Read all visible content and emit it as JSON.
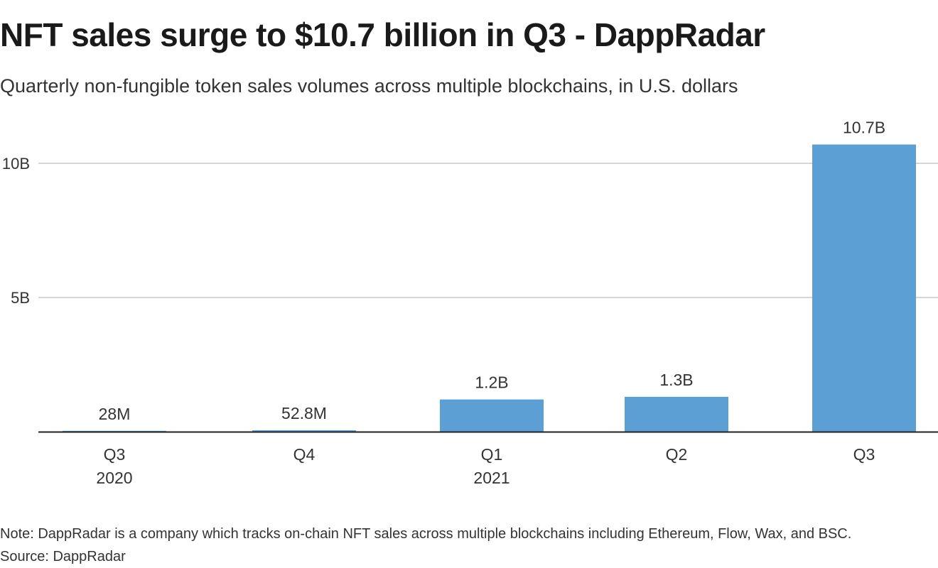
{
  "header": {
    "title": "NFT sales surge to $10.7 billion in Q3 - DappRadar",
    "subtitle": "Quarterly non-fungible token sales volumes across multiple blockchains, in U.S. dollars"
  },
  "footer": {
    "note": "Note: DappRadar is a company which tracks on-chain NFT sales across multiple blockchains including Ethereum, Flow, Wax, and BSC.",
    "source": "Source: DappRadar"
  },
  "chart_data": {
    "type": "bar",
    "categories": [
      "Q3",
      "Q4",
      "Q1",
      "Q2",
      "Q3"
    ],
    "year_labels": [
      "2020",
      "",
      "2021",
      "",
      ""
    ],
    "values": [
      0.028,
      0.0528,
      1.2,
      1.3,
      10.7
    ],
    "value_labels": [
      "28M",
      "52.8M",
      "1.2B",
      "1.3B",
      "10.7B"
    ],
    "value_unit": "billion U.S. dollars",
    "yticks": [
      5,
      10
    ],
    "ytick_labels": [
      "5B",
      "10B"
    ],
    "ylim": [
      0,
      11
    ],
    "bar_color": "#5b9fd4",
    "gridline_color": "#c8c8c8",
    "axis_color": "#222222",
    "grid": true,
    "legend": false
  }
}
